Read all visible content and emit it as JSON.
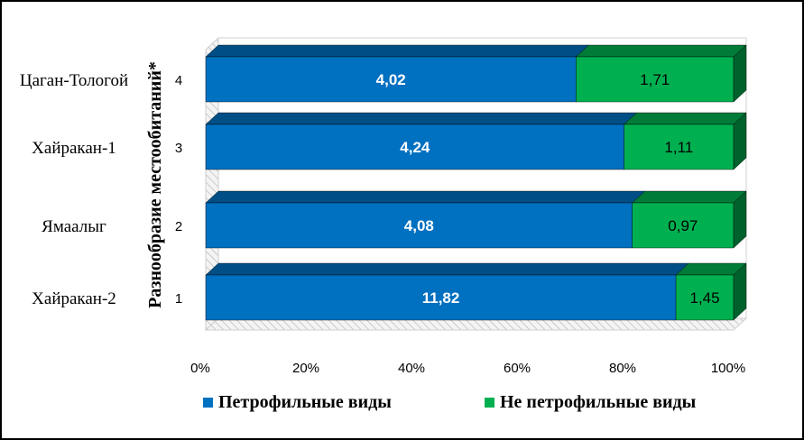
{
  "chart_data": {
    "type": "bar",
    "orientation": "horizontal",
    "stacked": "percent",
    "three_d": true,
    "categories": [
      "1",
      "2",
      "3",
      "4"
    ],
    "category_labels": [
      "Хайракан-2",
      "Ямаалыг",
      "Хайракан-1",
      "Цаган-Тологой"
    ],
    "series": [
      {
        "name": "Петрофильные виды",
        "color": "#0070C0",
        "values": [
          11.82,
          4.08,
          4.24,
          4.02
        ]
      },
      {
        "name": "Не петрофильные виды",
        "color": "#00B050",
        "values": [
          1.45,
          0.97,
          1.11,
          1.71
        ]
      }
    ],
    "ylabel": "Разнообразие местообитаний*",
    "x_ticks": [
      "0%",
      "20%",
      "40%",
      "60%",
      "80%",
      "100%"
    ],
    "xlim": [
      0,
      100
    ],
    "grid": false,
    "legend_position": "bottom"
  }
}
